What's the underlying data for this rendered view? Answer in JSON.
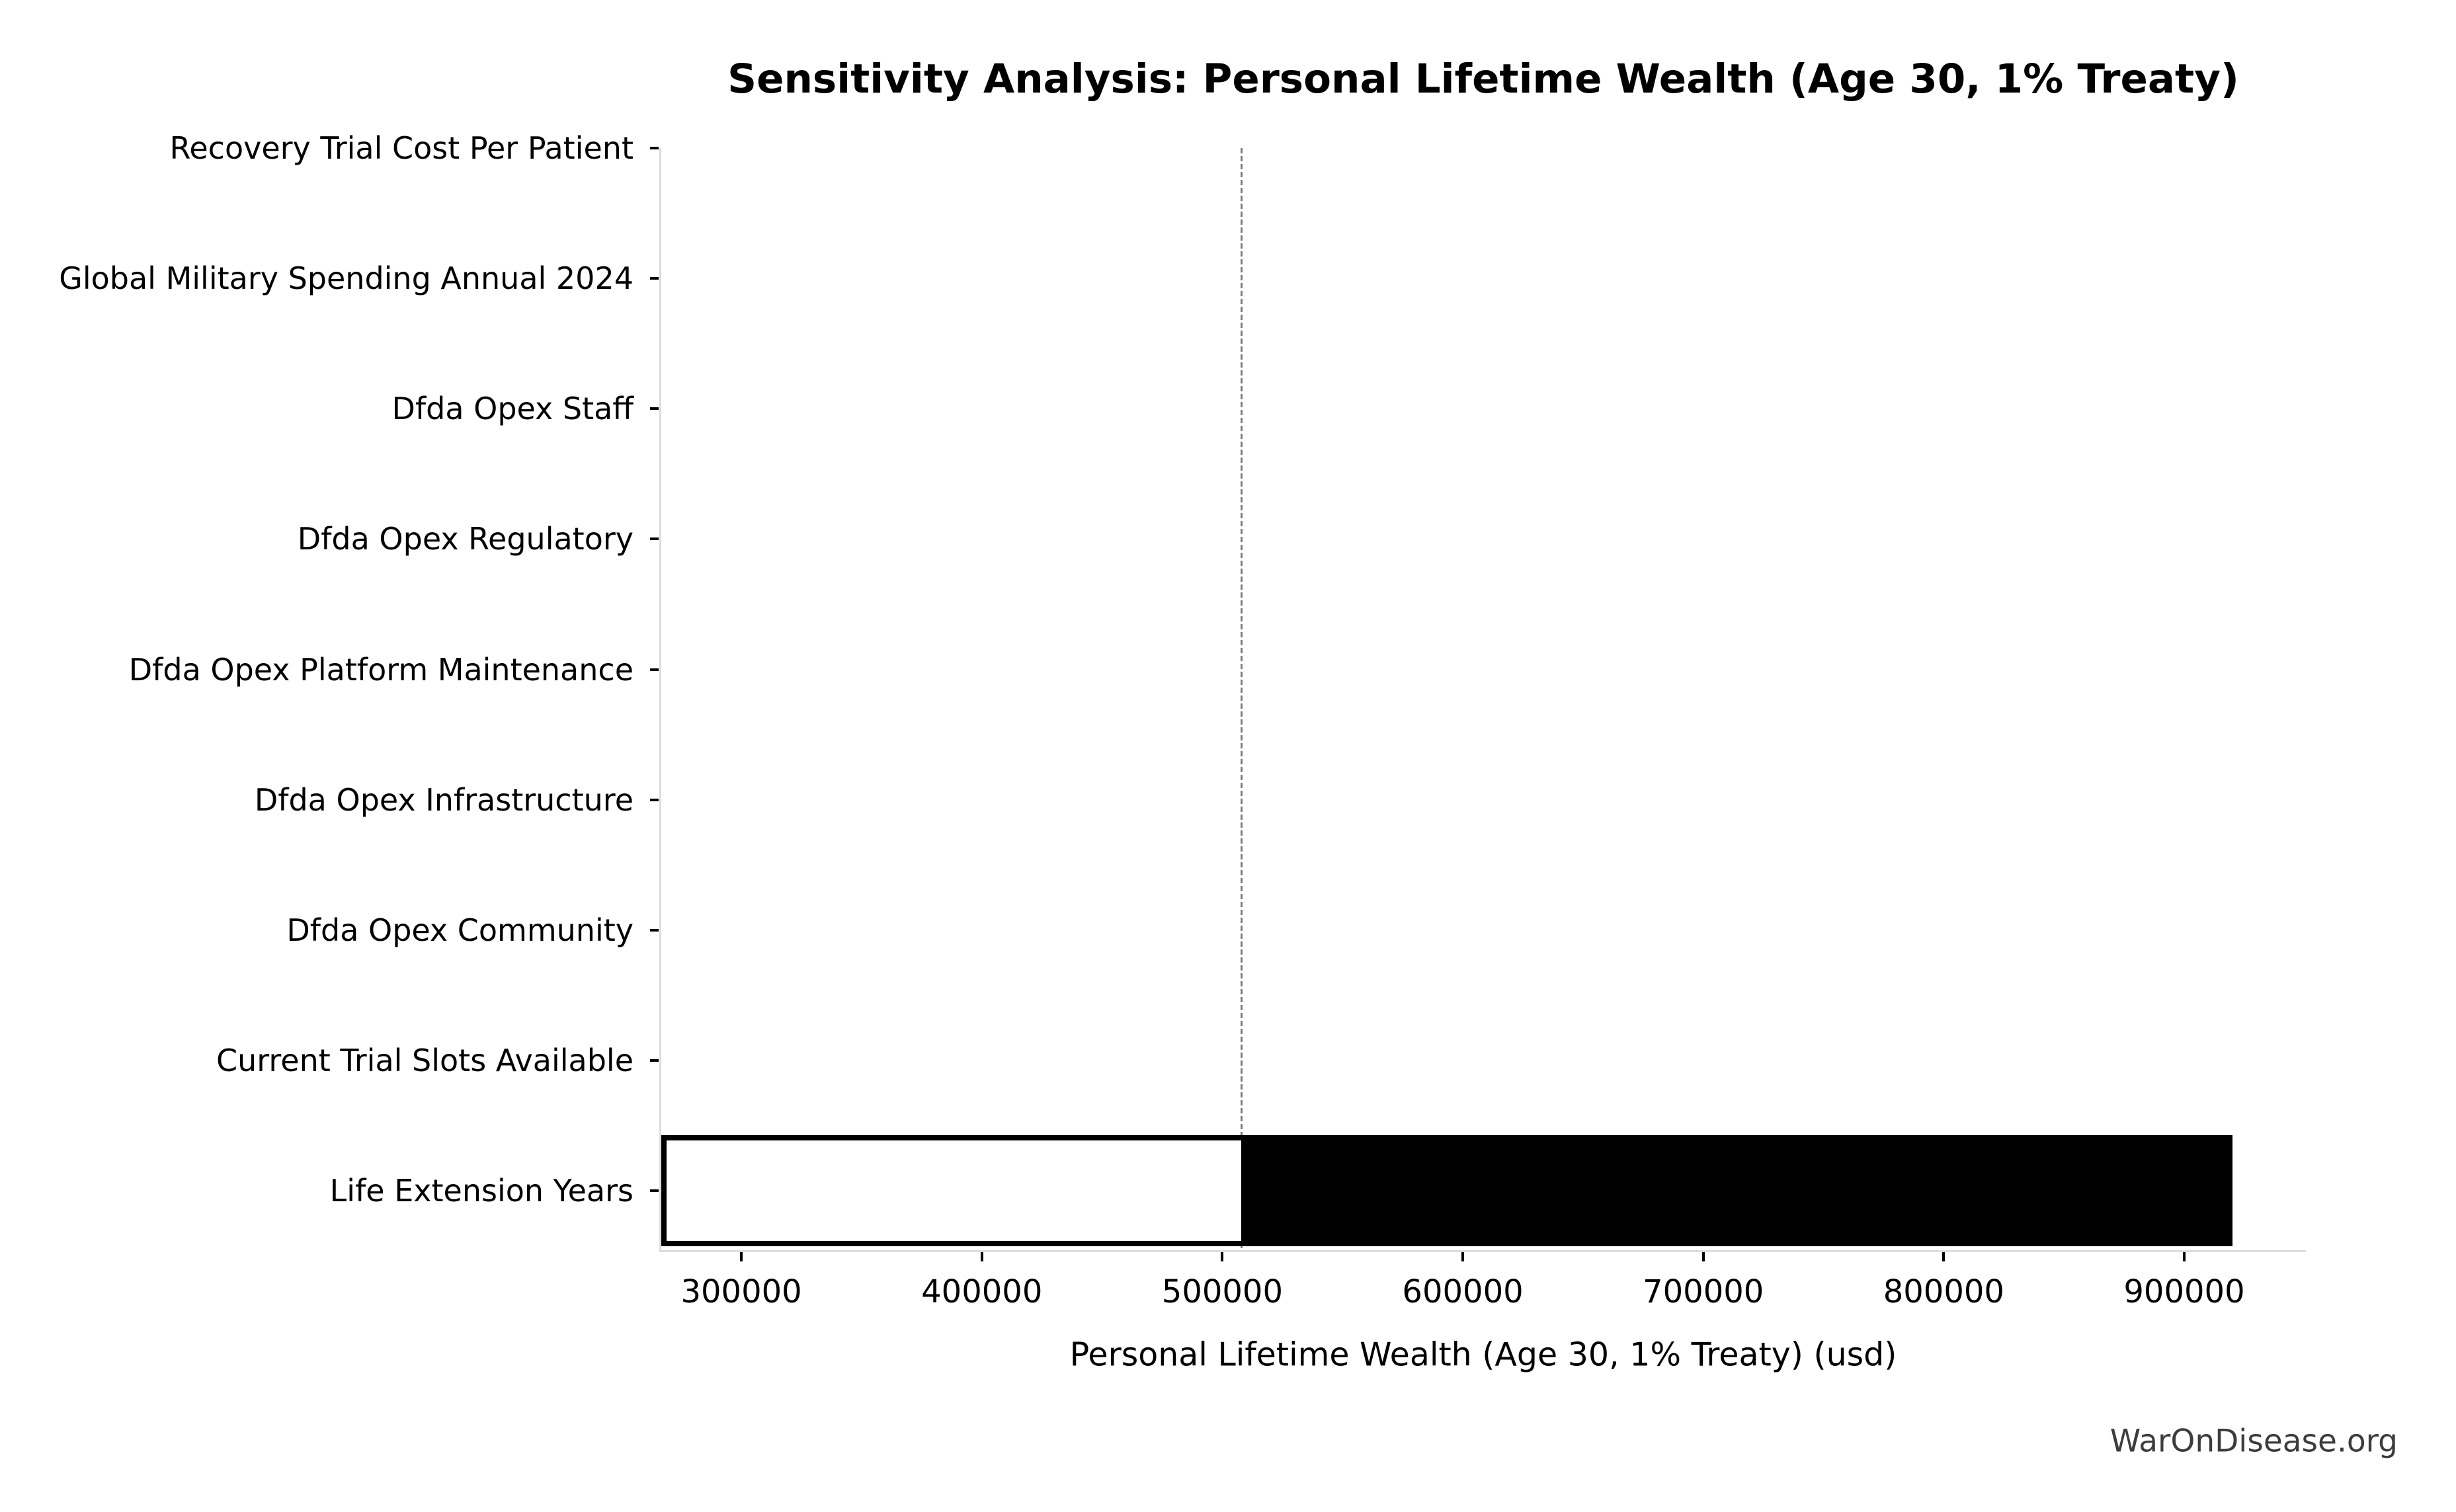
{
  "watermark": "WarOnDisease.org",
  "chart_data": {
    "type": "bar",
    "orientation": "horizontal",
    "title": "Sensitivity Analysis: Personal Lifetime Wealth (Age 30, 1% Treaty)",
    "xlabel": "Personal Lifetime Wealth (Age 30, 1% Treaty) (usd)",
    "ylabel": "",
    "grid": false,
    "legend": null,
    "xlim": [
      266700,
      950600
    ],
    "xticks": [
      300000,
      400000,
      500000,
      600000,
      700000,
      800000,
      900000
    ],
    "baseline_value": 508000,
    "categories": [
      "Recovery Trial Cost Per Patient",
      "Global Military Spending Annual 2024",
      "Dfda Opex Staff",
      "Dfda Opex Regulatory",
      "Dfda Opex Platform Maintenance",
      "Dfda Opex Infrastructure",
      "Dfda Opex Community",
      "Current Trial Slots Available",
      "Life Extension Years"
    ],
    "bars": [
      {
        "label": "Recovery Trial Cost Per Patient",
        "low": 508000,
        "high": 508000
      },
      {
        "label": "Global Military Spending Annual 2024",
        "low": 508000,
        "high": 508000
      },
      {
        "label": "Dfda Opex Staff",
        "low": 508000,
        "high": 508000
      },
      {
        "label": "Dfda Opex Regulatory",
        "low": 508000,
        "high": 508000
      },
      {
        "label": "Dfda Opex Platform Maintenance",
        "low": 508000,
        "high": 508000
      },
      {
        "label": "Dfda Opex Infrastructure",
        "low": 508000,
        "high": 508000
      },
      {
        "label": "Dfda Opex Community",
        "low": 508000,
        "high": 508000
      },
      {
        "label": "Current Trial Slots Available",
        "low": 508000,
        "high": 508000
      },
      {
        "label": "Life Extension Years",
        "low": 266700,
        "high": 920000
      }
    ],
    "colors": {
      "bar_below_baseline": "#ffffff",
      "bar_above_baseline": "#000000",
      "bar_border": "#000000",
      "baseline_line": "#7f7f7f",
      "spine": "#dcdcdc",
      "tick": "#000000",
      "text": "#000000",
      "watermark_text": "#3d3d3d",
      "background": "#ffffff"
    }
  }
}
